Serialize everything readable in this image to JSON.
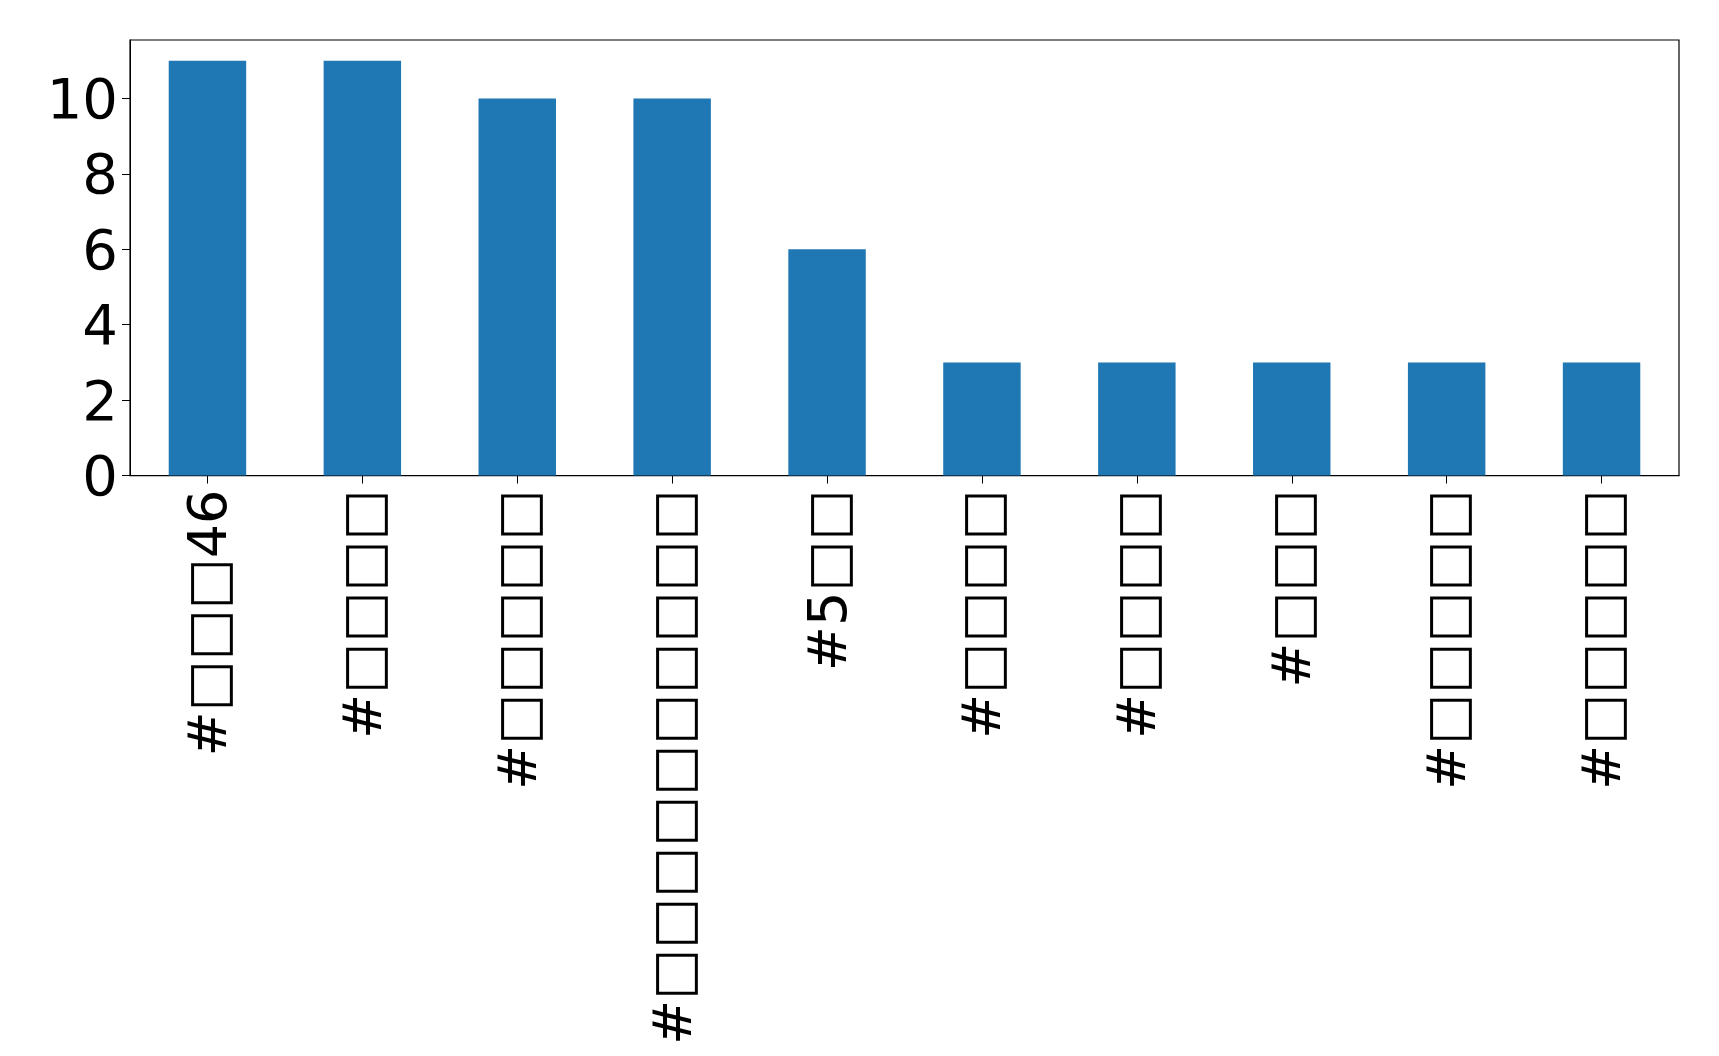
{
  "chart_data": {
    "type": "bar",
    "categories": [
      "#□□□46",
      "#□□□□",
      "#□□□□□",
      "#□□□□□□□□□□",
      "#5□□",
      "#□□□□",
      "#□□□□",
      "#□□□",
      "#□□□□□",
      "#□□□□□"
    ],
    "values": [
      11,
      11,
      10,
      10,
      6,
      3,
      3,
      3,
      3,
      3
    ],
    "color": "#1f77b4",
    "ylim": [
      0,
      11.55
    ],
    "yticks": [
      0,
      2,
      4,
      6,
      8,
      10
    ],
    "grid": false
  }
}
